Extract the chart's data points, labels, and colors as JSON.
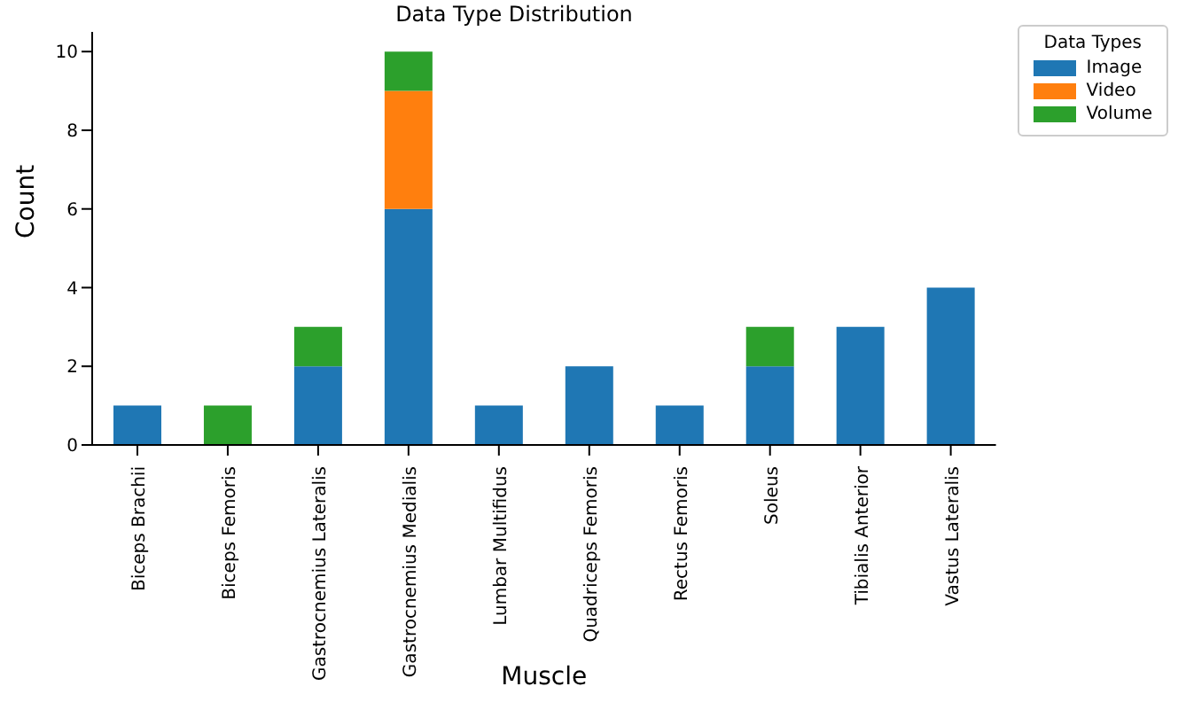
{
  "chart_data": {
    "type": "bar",
    "title": "Data Type Distribution",
    "xlabel": "Muscle",
    "ylabel": "Count",
    "legend_title": "Data Types",
    "legend": "top right",
    "stacked": true,
    "categories": [
      "Biceps Brachii",
      "Biceps Femoris",
      "Gastrocnemius Lateralis",
      "Gastrocnemius Medialis",
      "Lumbar Multifidus",
      "Quadriceps Femoris",
      "Rectus Femoris",
      "Soleus",
      "Tibialis Anterior",
      "Vastus Lateralis"
    ],
    "series": [
      {
        "name": "Image",
        "color": "#1f77b4",
        "values": [
          1,
          0,
          2,
          6,
          1,
          2,
          1,
          2,
          3,
          4
        ]
      },
      {
        "name": "Video",
        "color": "#ff7f0e",
        "values": [
          0,
          0,
          0,
          3,
          0,
          0,
          0,
          0,
          0,
          0
        ]
      },
      {
        "name": "Volume",
        "color": "#2ca02c",
        "values": [
          0,
          1,
          1,
          1,
          0,
          0,
          0,
          1,
          0,
          0
        ]
      }
    ],
    "ylim": [
      0,
      10.5
    ],
    "yticks": [
      0,
      2,
      4,
      6,
      8,
      10
    ],
    "grid": false
  }
}
